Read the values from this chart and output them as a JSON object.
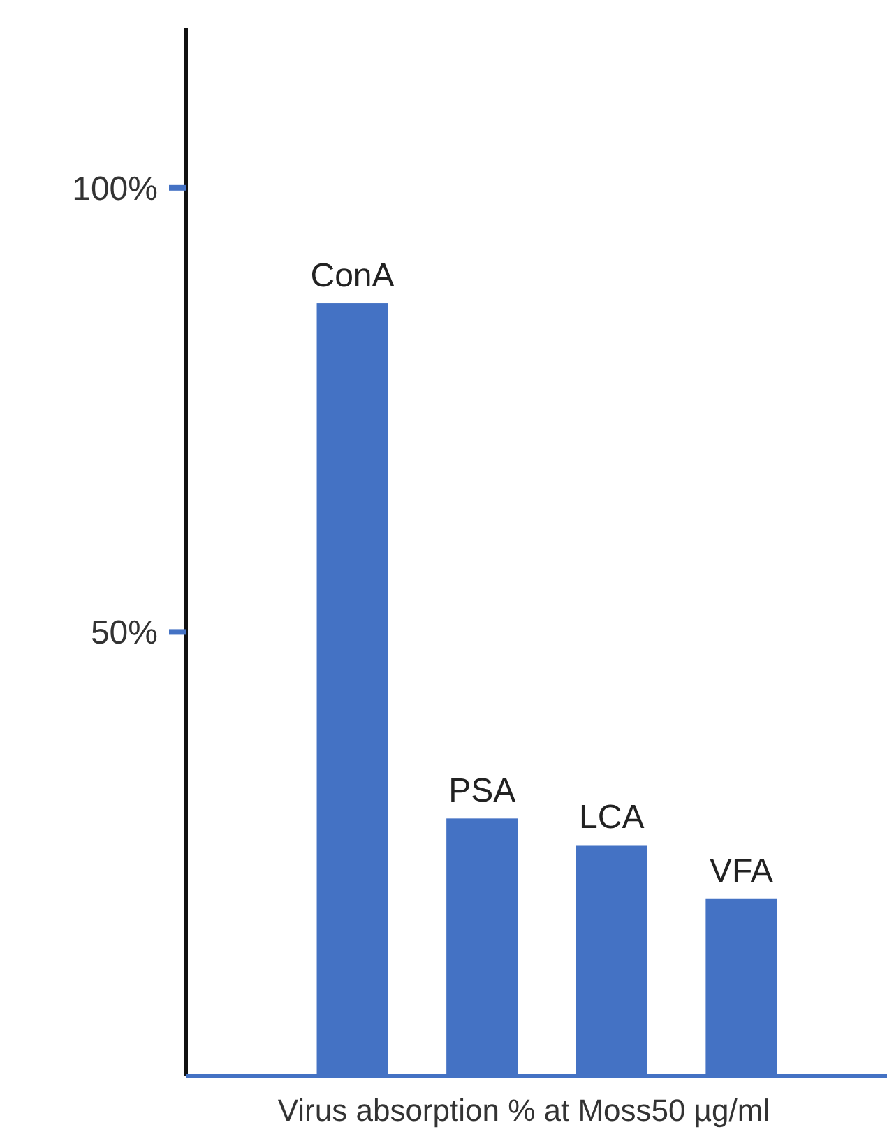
{
  "chart_data": {
    "type": "bar",
    "xlabel": "Virus absorption % at Moss50  µg/ml",
    "categories": [
      "ConA",
      "PSA",
      "LCA",
      "VFA"
    ],
    "values": [
      87,
      29,
      26,
      20
    ],
    "color": "#4472c4",
    "ylim": [
      0,
      118
    ],
    "yticks": [
      {
        "value": 50,
        "label": "50%"
      },
      {
        "value": 100,
        "label": "100%"
      }
    ],
    "grid": false
  }
}
